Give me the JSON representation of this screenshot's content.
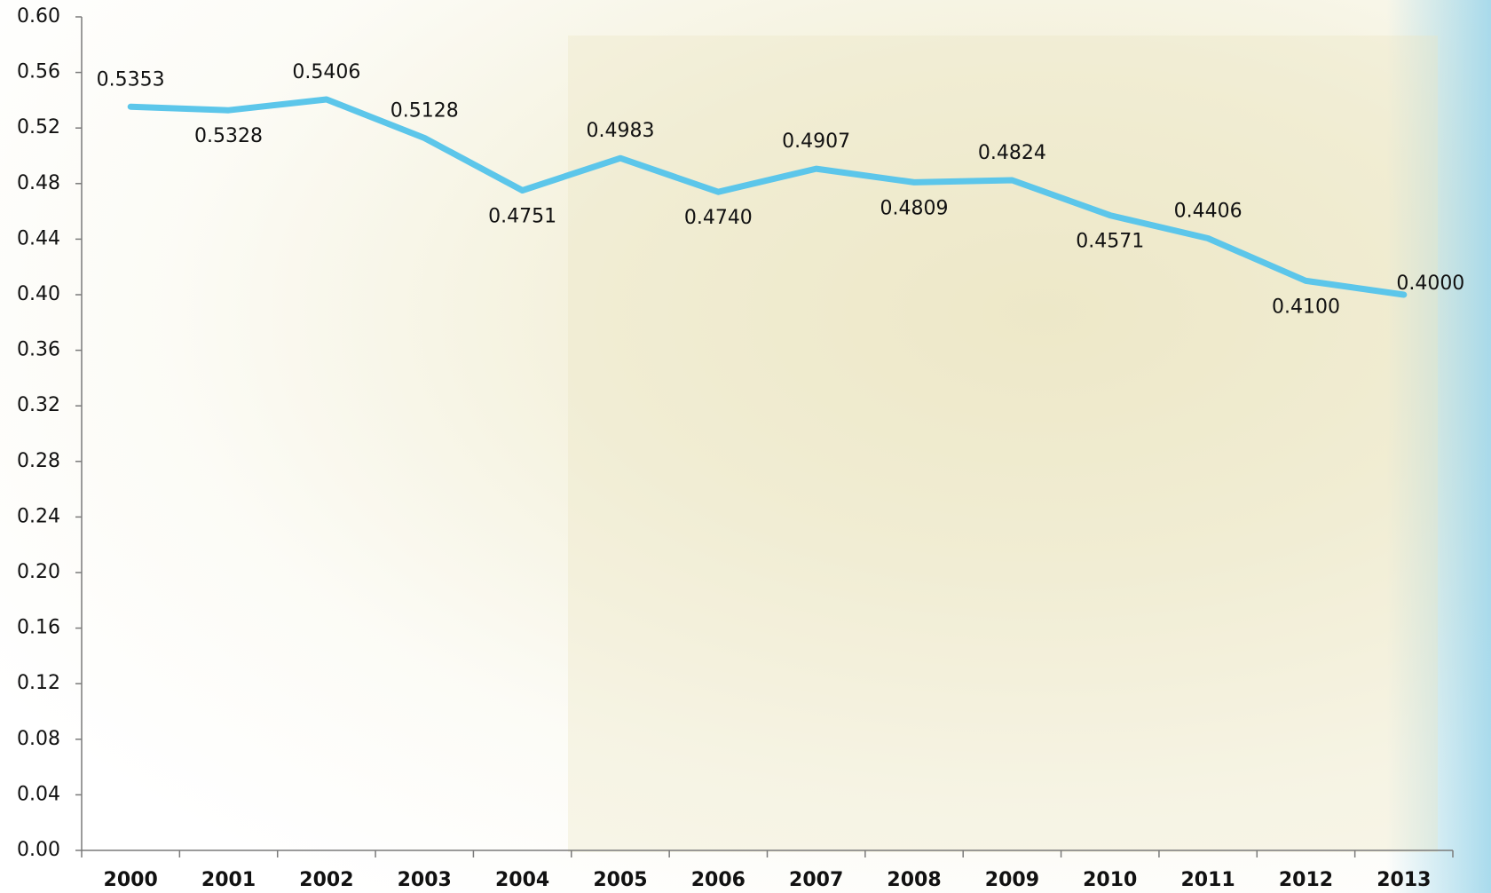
{
  "chart_data": {
    "type": "line",
    "categories": [
      "2000",
      "2001",
      "2002",
      "2003",
      "2004",
      "2005",
      "2006",
      "2007",
      "2008",
      "2009",
      "2010",
      "2011",
      "2012",
      "2013"
    ],
    "series": [
      {
        "color": "#5cc6ea",
        "values": [
          0.5353,
          0.5328,
          0.5406,
          0.5128,
          0.4751,
          0.4983,
          0.474,
          0.4907,
          0.4809,
          0.4824,
          0.4571,
          0.4406,
          0.41,
          0.4
        ],
        "value_labels": [
          "0.5353",
          "0.5328",
          "0.5406",
          "0.5128",
          "0.4751",
          "0.4983",
          "0.4740",
          "0.4907",
          "0.4809",
          "0.4824",
          "0.4571",
          "0.4406",
          "0.4100",
          "0.4000"
        ]
      }
    ],
    "ylim": [
      0,
      0.6
    ],
    "yticks": [
      {
        "value": 0,
        "label": "0.00"
      },
      0.04,
      0.08,
      0.12,
      0.16,
      {
        "value": 0.2,
        "label": "0.20"
      },
      0.24,
      0.28,
      0.32,
      0.36,
      {
        "value": 0.4,
        "label": "0.40"
      },
      0.44,
      0.48,
      0.52,
      0.56,
      {
        "value": 0.6,
        "label": "0.60"
      }
    ],
    "grid": false
  }
}
